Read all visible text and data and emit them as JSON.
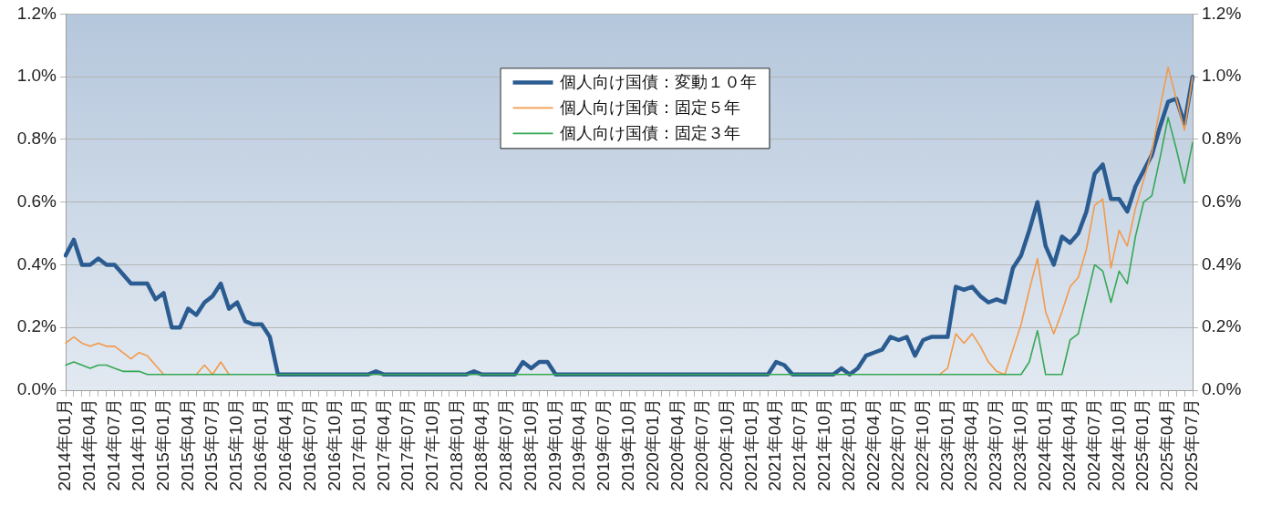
{
  "chart_data": {
    "type": "line",
    "categories": [
      "2014年01月",
      null,
      null,
      "2014年04月",
      null,
      null,
      "2014年07月",
      null,
      null,
      "2014年10月",
      null,
      null,
      "2015年01月",
      null,
      null,
      "2015年04月",
      null,
      null,
      "2015年07月",
      null,
      null,
      "2015年10月",
      null,
      null,
      "2016年01月",
      null,
      null,
      "2016年04月",
      null,
      null,
      "2016年07月",
      null,
      null,
      "2016年10月",
      null,
      null,
      "2017年01月",
      null,
      null,
      "2017年04月",
      null,
      null,
      "2017年07月",
      null,
      null,
      "2017年10月",
      null,
      null,
      "2018年01月",
      null,
      null,
      "2018年04月",
      null,
      null,
      "2018年07月",
      null,
      null,
      "2018年10月",
      null,
      null,
      "2019年01月",
      null,
      null,
      "2019年04月",
      null,
      null,
      "2019年07月",
      null,
      null,
      "2019年10月",
      null,
      null,
      "2020年01月",
      null,
      null,
      "2020年04月",
      null,
      null,
      "2020年07月",
      null,
      null,
      "2020年10月",
      null,
      null,
      "2021年01月",
      null,
      null,
      "2021年04月",
      null,
      null,
      "2021年07月",
      null,
      null,
      "2021年10月",
      null,
      null,
      "2022年01月",
      null,
      null,
      "2022年04月",
      null,
      null,
      "2022年07月",
      null,
      null,
      "2022年10月",
      null,
      null,
      "2023年01月",
      null,
      null,
      "2023年04月",
      null,
      null,
      "2023年07月",
      null,
      null,
      "2023年10月",
      null,
      null,
      "2024年01月",
      null,
      null,
      "2024年04月",
      null,
      null,
      "2024年07月",
      null,
      null,
      "2024年10月",
      null,
      null,
      "2025年01月",
      null,
      null,
      "2025年04月",
      null,
      null,
      "2025年07月"
    ],
    "series": [
      {
        "name": "個人向け国債：変動１０年",
        "color": "#2b5c91",
        "values": [
          0.43,
          0.48,
          0.4,
          0.4,
          0.42,
          0.4,
          0.4,
          0.37,
          0.34,
          0.34,
          0.34,
          0.29,
          0.31,
          0.2,
          0.2,
          0.26,
          0.24,
          0.28,
          0.3,
          0.34,
          0.26,
          0.28,
          0.22,
          0.21,
          0.21,
          0.17,
          0.05,
          0.05,
          0.05,
          0.05,
          0.05,
          0.05,
          0.05,
          0.05,
          0.05,
          0.05,
          0.05,
          0.05,
          0.06,
          0.05,
          0.05,
          0.05,
          0.05,
          0.05,
          0.05,
          0.05,
          0.05,
          0.05,
          0.05,
          0.05,
          0.06,
          0.05,
          0.05,
          0.05,
          0.05,
          0.05,
          0.09,
          0.07,
          0.09,
          0.09,
          0.05,
          0.05,
          0.05,
          0.05,
          0.05,
          0.05,
          0.05,
          0.05,
          0.05,
          0.05,
          0.05,
          0.05,
          0.05,
          0.05,
          0.05,
          0.05,
          0.05,
          0.05,
          0.05,
          0.05,
          0.05,
          0.05,
          0.05,
          0.05,
          0.05,
          0.05,
          0.05,
          0.09,
          0.08,
          0.05,
          0.05,
          0.05,
          0.05,
          0.05,
          0.05,
          0.07,
          0.05,
          0.07,
          0.11,
          0.12,
          0.13,
          0.17,
          0.16,
          0.17,
          0.11,
          0.16,
          0.17,
          0.17,
          0.17,
          0.33,
          0.32,
          0.33,
          0.3,
          0.28,
          0.29,
          0.28,
          0.39,
          0.43,
          0.51,
          0.6,
          0.46,
          0.4,
          0.49,
          0.47,
          0.5,
          0.57,
          0.69,
          0.72,
          0.61,
          0.61,
          0.57,
          0.65,
          0.7,
          0.75,
          0.84,
          0.92,
          0.93,
          0.85,
          1.0
        ]
      },
      {
        "name": "個人向け国債：固定５年",
        "color": "#f29a4a",
        "values": [
          0.15,
          0.17,
          0.15,
          0.14,
          0.15,
          0.14,
          0.14,
          0.12,
          0.1,
          0.12,
          0.11,
          0.08,
          0.05,
          null,
          null,
          null,
          0.05,
          0.08,
          0.05,
          0.09,
          0.05,
          null,
          null,
          null,
          null,
          null,
          null,
          null,
          null,
          null,
          null,
          null,
          null,
          null,
          null,
          null,
          null,
          null,
          null,
          null,
          null,
          null,
          null,
          null,
          null,
          null,
          null,
          null,
          null,
          null,
          null,
          null,
          null,
          null,
          null,
          null,
          null,
          null,
          null,
          null,
          null,
          null,
          null,
          null,
          null,
          null,
          null,
          null,
          null,
          null,
          null,
          null,
          null,
          null,
          null,
          null,
          null,
          null,
          null,
          null,
          null,
          null,
          null,
          null,
          null,
          null,
          null,
          null,
          null,
          null,
          null,
          null,
          null,
          null,
          null,
          null,
          null,
          null,
          null,
          null,
          null,
          null,
          null,
          null,
          null,
          null,
          null,
          0.05,
          0.07,
          0.18,
          0.15,
          0.18,
          0.14,
          0.09,
          0.06,
          0.05,
          0.13,
          0.21,
          0.32,
          0.42,
          0.25,
          0.18,
          0.25,
          0.33,
          0.36,
          0.45,
          0.59,
          0.61,
          0.39,
          0.51,
          0.46,
          0.58,
          0.67,
          0.76,
          0.9,
          1.03,
          0.93,
          0.83,
          1.0
        ]
      },
      {
        "name": "個人向け国債：固定３年",
        "color": "#34a853",
        "values": [
          0.08,
          0.09,
          0.08,
          0.07,
          0.08,
          0.08,
          0.07,
          0.06,
          0.06,
          0.06,
          0.05,
          0.05,
          0.05,
          0.05,
          0.05,
          0.05,
          0.05,
          0.05,
          0.05,
          0.05,
          0.05,
          0.05,
          0.05,
          0.05,
          0.05,
          0.05,
          0.05,
          0.05,
          0.05,
          0.05,
          0.05,
          0.05,
          0.05,
          0.05,
          0.05,
          0.05,
          0.05,
          0.05,
          0.05,
          0.05,
          0.05,
          0.05,
          0.05,
          0.05,
          0.05,
          0.05,
          0.05,
          0.05,
          0.05,
          0.05,
          0.05,
          0.05,
          0.05,
          0.05,
          0.05,
          0.05,
          0.05,
          0.05,
          0.05,
          0.05,
          0.05,
          0.05,
          0.05,
          0.05,
          0.05,
          0.05,
          0.05,
          0.05,
          0.05,
          0.05,
          0.05,
          0.05,
          0.05,
          0.05,
          0.05,
          0.05,
          0.05,
          0.05,
          0.05,
          0.05,
          0.05,
          0.05,
          0.05,
          0.05,
          0.05,
          0.05,
          0.05,
          0.05,
          0.05,
          0.05,
          0.05,
          0.05,
          0.05,
          0.05,
          0.05,
          0.05,
          0.05,
          0.05,
          0.05,
          0.05,
          0.05,
          0.05,
          0.05,
          0.05,
          0.05,
          0.05,
          0.05,
          0.05,
          0.05,
          0.05,
          0.05,
          0.05,
          0.05,
          0.05,
          0.05,
          0.05,
          0.05,
          0.05,
          0.09,
          0.19,
          0.05,
          0.05,
          0.05,
          0.16,
          0.18,
          0.29,
          0.4,
          0.38,
          0.28,
          0.38,
          0.34,
          0.49,
          0.6,
          0.62,
          0.74,
          0.87,
          0.77,
          0.66,
          0.79
        ]
      }
    ],
    "ylim": [
      0,
      1.2
    ],
    "yticks": [
      {
        "value": 0,
        "label": "0.0%"
      },
      {
        "value": 0.2,
        "label": "0.2%"
      },
      {
        "value": 0.4,
        "label": "0.4%"
      },
      {
        "value": 0.6,
        "label": "0.6%"
      },
      {
        "value": 0.8,
        "label": "0.8%"
      },
      {
        "value": 1.0,
        "label": "1.0%"
      },
      {
        "value": 1.2,
        "label": "1.2%"
      }
    ],
    "y2lim": [
      0,
      1.2
    ],
    "y2ticks": [
      {
        "value": 0,
        "label": "0.0%"
      },
      {
        "value": 0.2,
        "label": "0.2%"
      },
      {
        "value": 0.4,
        "label": "0.4%"
      },
      {
        "value": 0.6,
        "label": "0.6%"
      },
      {
        "value": 0.8,
        "label": "0.8%"
      },
      {
        "value": 1.0,
        "label": "1.0%"
      },
      {
        "value": 1.2,
        "label": "1.2%"
      }
    ],
    "grid": "y",
    "legend": "top",
    "marker": "none"
  }
}
